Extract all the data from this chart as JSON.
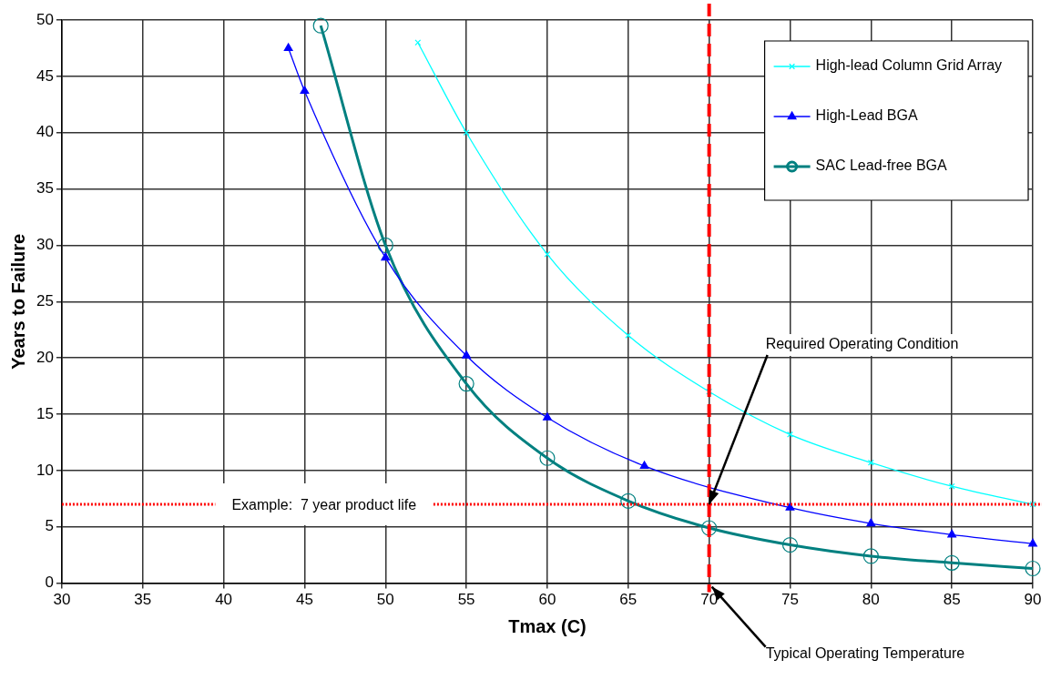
{
  "chart_data": {
    "type": "line",
    "xlabel": "Tmax (C)",
    "ylabel": "Years to Failure",
    "xlim": [
      30,
      90
    ],
    "xticks": [
      30,
      35,
      40,
      45,
      50,
      55,
      60,
      65,
      70,
      75,
      80,
      85,
      90
    ],
    "ylim": [
      0,
      50
    ],
    "yticks": [
      0,
      5,
      10,
      15,
      20,
      25,
      30,
      35,
      40,
      45,
      50
    ],
    "grid": true,
    "legend": "top right",
    "series": [
      {
        "name": "High-lead Column Grid Array",
        "color": "#00ffff",
        "marker": "cross",
        "x": [
          52,
          55,
          60,
          65,
          70,
          75,
          80,
          85,
          90
        ],
        "values": [
          48,
          40,
          29.2,
          22,
          17,
          13.2,
          10.7,
          8.6,
          7
        ]
      },
      {
        "name": "High-Lead BGA",
        "color": "#0000ff",
        "marker": "triangle",
        "x": [
          44,
          45,
          50,
          55,
          60,
          66,
          75,
          80,
          85,
          90
        ],
        "values": [
          47.5,
          43.7,
          28.9,
          20.2,
          14.7,
          10.4,
          6.7,
          5.3,
          4.3,
          3.5
        ]
      },
      {
        "name": "SAC Lead-free BGA",
        "color": "#008080",
        "marker": "circle",
        "x": [
          46,
          50,
          55,
          60,
          65,
          70,
          75,
          80,
          85,
          90
        ],
        "values": [
          49.5,
          30,
          17.7,
          11.1,
          7.3,
          4.9,
          3.4,
          2.4,
          1.8,
          1.3
        ]
      }
    ],
    "ref_lines": [
      {
        "axis": "x",
        "value": 70,
        "color": "#ff0000",
        "line_style": "dashed"
      },
      {
        "axis": "y",
        "value": 7,
        "label": "Example:  7 year product life",
        "color": "#ff0000",
        "line_style": "dotted"
      }
    ],
    "annotations": [
      {
        "text": "Required Operating Condition",
        "x": 70,
        "y": 7
      },
      {
        "text": "Typical Operating Temperature",
        "x": 70,
        "y": 0
      }
    ]
  }
}
